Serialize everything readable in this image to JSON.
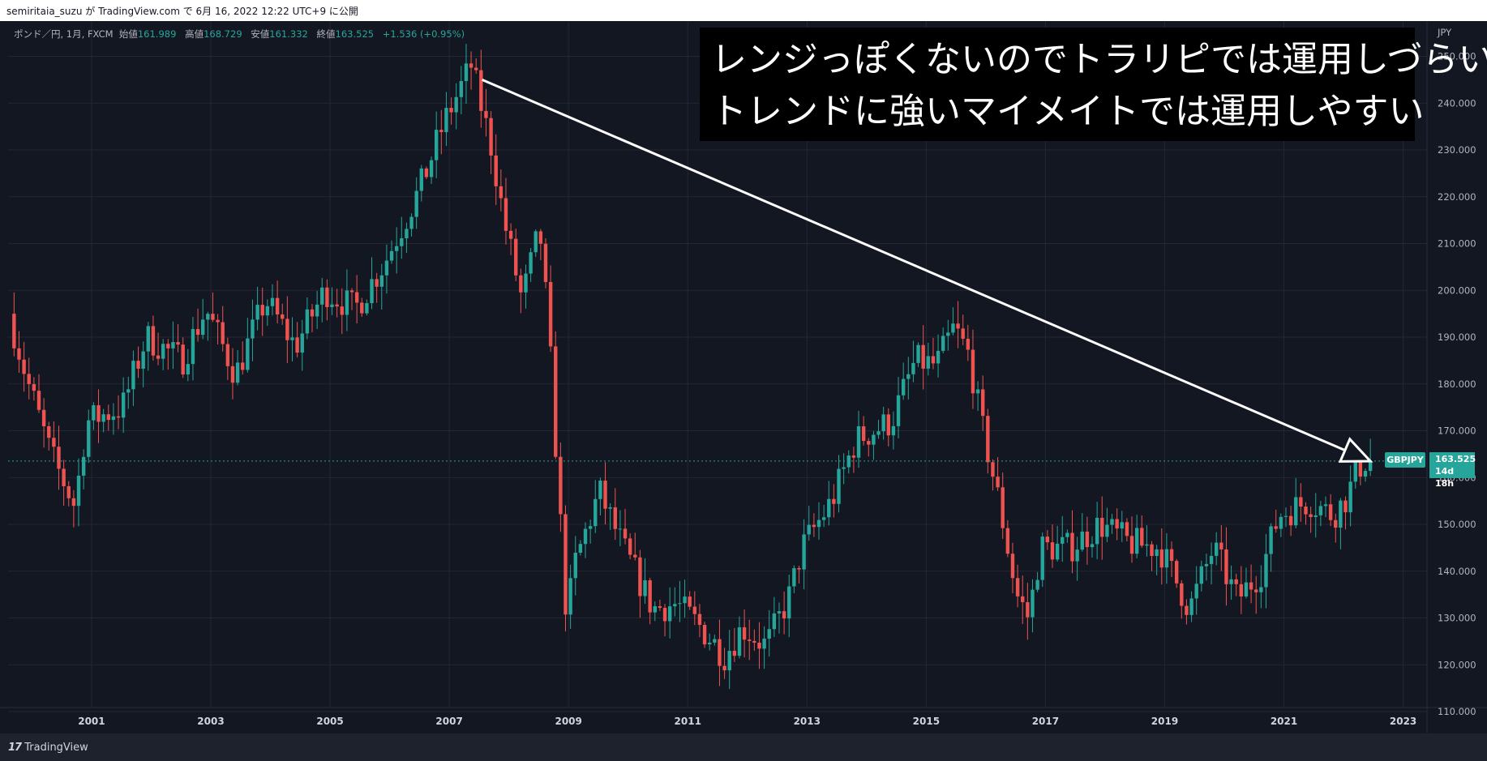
{
  "topbar": {
    "text": "semiritaia_suzu が TradingView.com で 6月 16, 2022 12:22 UTC+9 に公開"
  },
  "legend": {
    "symbol": "ポンド／円, 1月, FXCM",
    "open_label": "始値",
    "open": "161.989",
    "high_label": "高値",
    "high": "168.729",
    "low_label": "安値",
    "low": "161.332",
    "close_label": "終値",
    "close": "163.525",
    "change": "+1.536 (+0.95%)"
  },
  "overlay": {
    "line1": "レンジっぽくないのでトラリピでは運用しづらいが",
    "line2": "トレンドに強いマイメイトでは運用しやすい"
  },
  "price_tag": {
    "symbol": "GBPJPY",
    "price": "163.525",
    "countdown": "14d 18h"
  },
  "footer": {
    "brand": "TradingView"
  },
  "colors": {
    "up": "#26a69a",
    "down": "#ef5350",
    "background": "#131722",
    "grid": "#242733"
  },
  "chart_data": {
    "type": "candlestick",
    "currency": "JPY",
    "ylim": [
      110,
      255
    ],
    "xlim": [
      1999.6,
      2023.4
    ],
    "y_ticks": [
      "110.000",
      "120.000",
      "130.000",
      "140.000",
      "150.000",
      "160.000",
      "170.000",
      "180.000",
      "190.000",
      "200.000",
      "210.000",
      "220.000",
      "230.000",
      "240.000",
      "250.000"
    ],
    "x_ticks": [
      "2001",
      "2003",
      "2005",
      "2007",
      "2009",
      "2011",
      "2013",
      "2015",
      "2017",
      "2019",
      "2021",
      "2023"
    ],
    "current_price": 163.525,
    "path_points": [
      [
        1999.7,
        195
      ],
      [
        2000.0,
        181
      ],
      [
        2000.4,
        165
      ],
      [
        2000.8,
        154
      ],
      [
        2001.0,
        172
      ],
      [
        2001.6,
        175
      ],
      [
        2002.0,
        190
      ],
      [
        2002.6,
        185
      ],
      [
        2003.0,
        196
      ],
      [
        2003.5,
        182
      ],
      [
        2004.0,
        198
      ],
      [
        2004.5,
        188
      ],
      [
        2005.0,
        200
      ],
      [
        2005.5,
        196
      ],
      [
        2006.0,
        206
      ],
      [
        2006.6,
        222
      ],
      [
        2007.0,
        236
      ],
      [
        2007.45,
        248
      ],
      [
        2007.8,
        230
      ],
      [
        2008.0,
        215
      ],
      [
        2008.3,
        198
      ],
      [
        2008.6,
        213
      ],
      [
        2008.75,
        192
      ],
      [
        2008.9,
        160
      ],
      [
        2009.05,
        130
      ],
      [
        2009.2,
        142
      ],
      [
        2009.6,
        157
      ],
      [
        2010.0,
        145
      ],
      [
        2010.5,
        132
      ],
      [
        2010.9,
        133
      ],
      [
        2011.3,
        128
      ],
      [
        2011.7,
        122
      ],
      [
        2012.0,
        128
      ],
      [
        2012.4,
        124
      ],
      [
        2012.8,
        135
      ],
      [
        2013.0,
        145
      ],
      [
        2013.5,
        155
      ],
      [
        2013.9,
        168
      ],
      [
        2014.5,
        172
      ],
      [
        2014.9,
        185
      ],
      [
        2015.25,
        184
      ],
      [
        2015.55,
        192
      ],
      [
        2015.8,
        186
      ],
      [
        2016.0,
        172
      ],
      [
        2016.3,
        155
      ],
      [
        2016.6,
        135
      ],
      [
        2016.8,
        130
      ],
      [
        2017.0,
        145
      ],
      [
        2017.5,
        145
      ],
      [
        2018.0,
        150
      ],
      [
        2018.5,
        146
      ],
      [
        2019.0,
        145
      ],
      [
        2019.5,
        132
      ],
      [
        2019.9,
        145
      ],
      [
        2020.3,
        134
      ],
      [
        2020.7,
        140
      ],
      [
        2021.0,
        152
      ],
      [
        2021.5,
        155
      ],
      [
        2021.9,
        152
      ],
      [
        2022.1,
        155
      ],
      [
        2022.4,
        163.5
      ]
    ],
    "arrow_annotation": {
      "from": [
        2007.55,
        245
      ],
      "to": [
        2022.45,
        163.5
      ]
    }
  }
}
